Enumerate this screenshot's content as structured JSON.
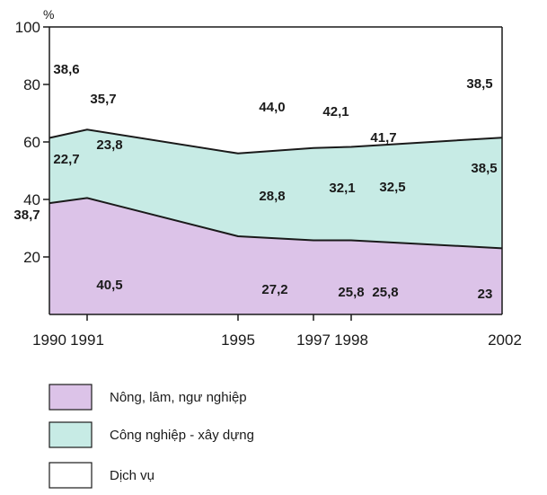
{
  "chart_data": {
    "type": "area",
    "stacked": true,
    "unit": "%",
    "x": [
      1990,
      1991,
      1995,
      1997,
      1998,
      2002
    ],
    "x_tick_labels": [
      "1990",
      "1991",
      "1995",
      "1997",
      "1998",
      "2002"
    ],
    "ylim": [
      0,
      100
    ],
    "y_ticks": [
      20,
      40,
      60,
      80,
      100
    ],
    "y_tick_labels": [
      "20",
      "40",
      "60",
      "80",
      "100"
    ],
    "grid": false,
    "legend_position": "bottom",
    "series": [
      {
        "name": "Nông, lâm, ngư nghiệp",
        "color": "#dcc3e8",
        "values": [
          38.7,
          40.5,
          27.2,
          25.8,
          25.8,
          23
        ],
        "labels": [
          "38,7",
          "40,5",
          "27,2",
          "25,8",
          "25,8",
          "23"
        ]
      },
      {
        "name": "Công nghiệp - xây dựng",
        "color": "#c7ebe5",
        "values": [
          22.7,
          23.8,
          28.8,
          32.1,
          32.5,
          38.5
        ],
        "labels": [
          "22,7",
          "23,8",
          "28,8",
          "32,1",
          "32,5",
          "38,5"
        ]
      },
      {
        "name": "Dịch vụ",
        "color": "#ffffff",
        "values": [
          38.6,
          35.7,
          44.0,
          42.1,
          41.7,
          38.5
        ],
        "labels": [
          "38,6",
          "35,7",
          "44,0",
          "42,1",
          "41,7",
          "38,5"
        ]
      }
    ]
  }
}
